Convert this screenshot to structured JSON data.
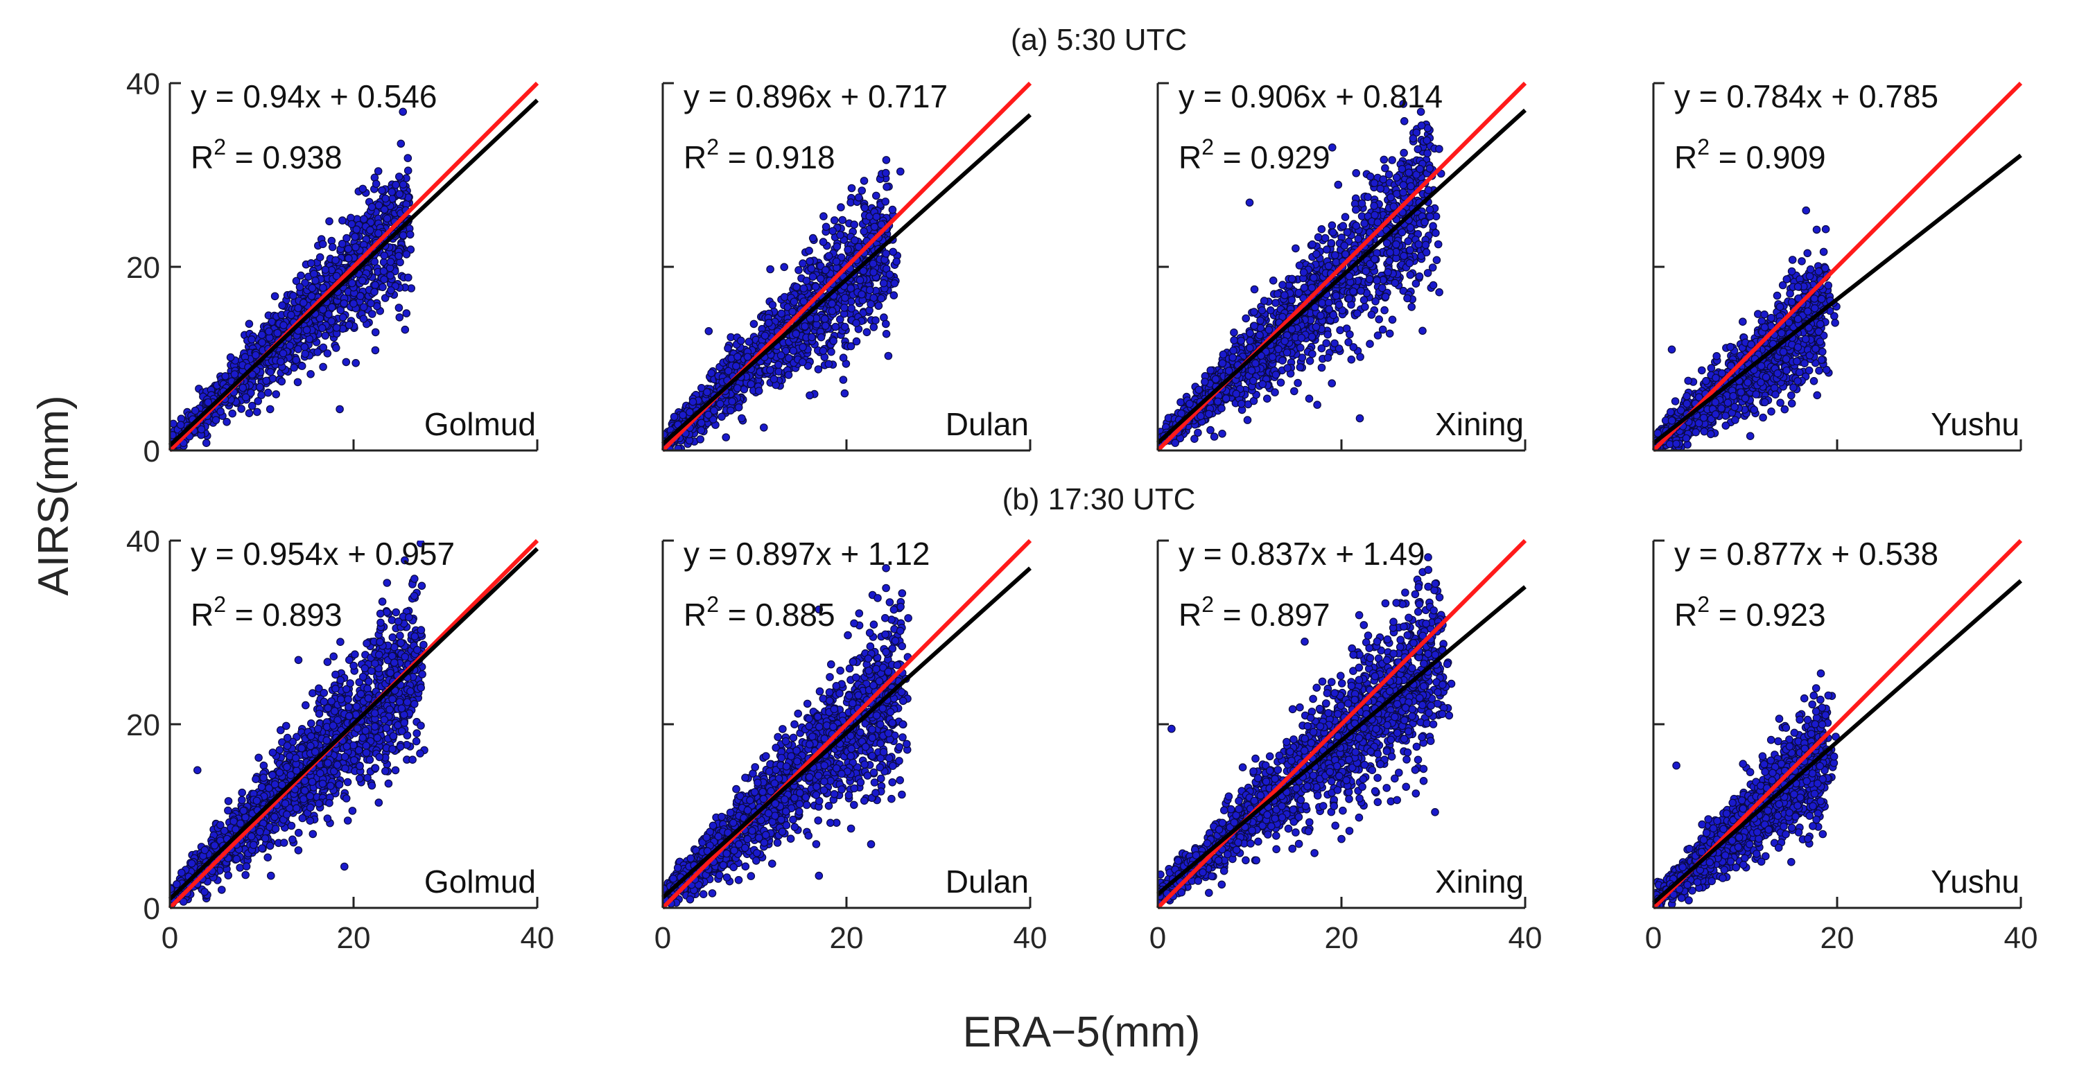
{
  "figure": {
    "xlabel": "ERA−5(mm)",
    "ylabel": "AIRS(mm)"
  },
  "colors": {
    "points": "#1a1acc",
    "point_edge": "#0a0a40",
    "one_to_one": "#ff1a1a",
    "fit": "#000000"
  },
  "chart_data": [
    {
      "row": 0,
      "panel_title": "(a) 5:30 UTC",
      "panels": [
        {
          "station": "Golmud",
          "type": "scatter",
          "equation": "y = 0.94x + 0.546",
          "slope": 0.94,
          "intercept": 0.546,
          "r2_label": "R",
          "r2_sup": "2",
          "r2_value": " = 0.938",
          "xlim": [
            0,
            40
          ],
          "ylim": [
            0,
            40
          ],
          "xticks": [
            "0",
            "20",
            "40"
          ],
          "yticks": [
            "0",
            "20",
            "40"
          ],
          "cloud": {
            "xmax": 26,
            "spread": 0.13,
            "n": 1300,
            "outliers": [
              [
                18.5,
                4.5
              ],
              [
                21,
                28.5
              ],
              [
                20,
                16
              ],
              [
                25,
                14.5
              ]
            ]
          }
        },
        {
          "station": "Dulan",
          "type": "scatter",
          "equation": "y = 0.896x + 0.717",
          "slope": 0.896,
          "intercept": 0.717,
          "r2_label": "R",
          "r2_sup": "2",
          "r2_value": " = 0.918",
          "xlim": [
            0,
            40
          ],
          "ylim": [
            0,
            40
          ],
          "xticks": [
            "0",
            "20",
            "40"
          ],
          "yticks": [
            "0",
            "20",
            "40"
          ],
          "cloud": {
            "xmax": 25,
            "spread": 0.15,
            "n": 1300,
            "outliers": [
              [
                11,
                2.5
              ],
              [
                17.5,
                25.5
              ],
              [
                5,
                13
              ],
              [
                16,
                6
              ]
            ]
          }
        },
        {
          "station": "Xining",
          "type": "scatter",
          "equation": "y = 0.906x + 0.814",
          "slope": 0.906,
          "intercept": 0.814,
          "r2_label": "R",
          "r2_sup": "2",
          "r2_value": " = 0.929",
          "xlim": [
            0,
            40
          ],
          "ylim": [
            0,
            40
          ],
          "xticks": [
            "0",
            "20",
            "40"
          ],
          "yticks": [
            "0",
            "20",
            "40"
          ],
          "cloud": {
            "xmax": 30,
            "spread": 0.15,
            "n": 1500,
            "outliers": [
              [
                22,
                3.5
              ],
              [
                19,
                33
              ],
              [
                30,
                18
              ],
              [
                10,
                27
              ]
            ]
          }
        },
        {
          "station": "Yushu",
          "type": "scatter",
          "equation": "y = 0.784x + 0.785",
          "slope": 0.784,
          "intercept": 0.785,
          "r2_label": "R",
          "r2_sup": "2",
          "r2_value": " = 0.909",
          "xlim": [
            0,
            40
          ],
          "ylim": [
            0,
            40
          ],
          "xticks": [
            "0",
            "20",
            "40"
          ],
          "yticks": [
            "0",
            "20",
            "40"
          ],
          "cloud": {
            "xmax": 19,
            "spread": 0.16,
            "n": 1200,
            "outliers": [
              [
                18,
                19.5
              ],
              [
                2,
                11
              ],
              [
                15,
                6
              ]
            ]
          }
        }
      ]
    },
    {
      "row": 1,
      "panel_title": "(b) 17:30 UTC",
      "panels": [
        {
          "station": "Golmud",
          "type": "scatter",
          "equation": "y = 0.954x + 0.957",
          "slope": 0.954,
          "intercept": 0.957,
          "r2_label": "R",
          "r2_sup": "2",
          "r2_value": " = 0.893",
          "xlim": [
            0,
            40
          ],
          "ylim": [
            0,
            40
          ],
          "xticks": [
            "0",
            "20",
            "40"
          ],
          "yticks": [
            "0",
            "20",
            "40"
          ],
          "cloud": {
            "xmax": 27,
            "spread": 0.16,
            "n": 1600,
            "outliers": [
              [
                19,
                4.5
              ],
              [
                14,
                27
              ],
              [
                3,
                15
              ],
              [
                11,
                3.5
              ]
            ]
          }
        },
        {
          "station": "Dulan",
          "type": "scatter",
          "equation": "y = 0.897x + 1.12",
          "slope": 0.897,
          "intercept": 1.12,
          "r2_label": "R",
          "r2_sup": "2",
          "r2_value": " = 0.885",
          "xlim": [
            0,
            40
          ],
          "ylim": [
            0,
            40
          ],
          "xticks": [
            "0",
            "20",
            "40"
          ],
          "yticks": [
            "0",
            "20",
            "40"
          ],
          "cloud": {
            "xmax": 26,
            "spread": 0.16,
            "n": 1600,
            "outliers": [
              [
                17,
                3.5
              ],
              [
                17,
                32.5
              ],
              [
                26,
                23.5
              ]
            ]
          }
        },
        {
          "station": "Xining",
          "type": "scatter",
          "equation": "y = 0.837x + 1.49",
          "slope": 0.837,
          "intercept": 1.49,
          "r2_label": "R",
          "r2_sup": "2",
          "r2_value": " = 0.897",
          "xlim": [
            0,
            40
          ],
          "ylim": [
            0,
            40
          ],
          "xticks": [
            "0",
            "20",
            "40"
          ],
          "yticks": [
            "0",
            "20",
            "40"
          ],
          "cloud": {
            "xmax": 31,
            "spread": 0.15,
            "n": 1600,
            "outliers": [
              [
                1.5,
                19.5
              ],
              [
                20,
                7.5
              ],
              [
                16,
                29
              ],
              [
                30,
                20
              ]
            ]
          }
        },
        {
          "station": "Yushu",
          "type": "scatter",
          "equation": "y = 0.877x + 0.538",
          "slope": 0.877,
          "intercept": 0.538,
          "r2_label": "R",
          "r2_sup": "2",
          "r2_value": " = 0.923",
          "xlim": [
            0,
            40
          ],
          "ylim": [
            0,
            40
          ],
          "xticks": [
            "0",
            "20",
            "40"
          ],
          "yticks": [
            "0",
            "20",
            "40"
          ],
          "cloud": {
            "xmax": 19,
            "spread": 0.14,
            "n": 1300,
            "outliers": [
              [
                2.5,
                15.5
              ],
              [
                15,
                5
              ]
            ]
          }
        }
      ]
    }
  ]
}
